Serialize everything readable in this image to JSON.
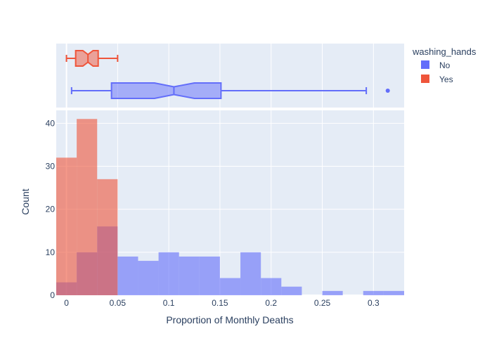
{
  "chart_data": {
    "type": "histogram",
    "xlabel": "Proportion of Monthly Deaths",
    "ylabel": "Count",
    "xlim": [
      -0.01,
      0.33
    ],
    "ylim": [
      0,
      43
    ],
    "y_ticks": [
      0,
      10,
      20,
      30,
      40
    ],
    "x_ticks": [
      0,
      0.05,
      0.1,
      0.15,
      0.2,
      0.25,
      0.3
    ],
    "x_tick_labels": [
      "0",
      "0.05",
      "0.1",
      "0.15",
      "0.2",
      "0.25",
      "0.3"
    ],
    "grid": true,
    "legend_title": "washing_hands",
    "legend_placement": "top-right",
    "series": [
      {
        "name": "No",
        "color": "#636efa",
        "bins": [
          {
            "x0": -0.01,
            "x1": 0.01,
            "count": 3
          },
          {
            "x0": 0.01,
            "x1": 0.03,
            "count": 10
          },
          {
            "x0": 0.03,
            "x1": 0.05,
            "count": 16
          },
          {
            "x0": 0.05,
            "x1": 0.07,
            "count": 9
          },
          {
            "x0": 0.07,
            "x1": 0.09,
            "count": 8
          },
          {
            "x0": 0.09,
            "x1": 0.11,
            "count": 10
          },
          {
            "x0": 0.11,
            "x1": 0.13,
            "count": 9
          },
          {
            "x0": 0.13,
            "x1": 0.15,
            "count": 9
          },
          {
            "x0": 0.15,
            "x1": 0.17,
            "count": 4
          },
          {
            "x0": 0.17,
            "x1": 0.19,
            "count": 10
          },
          {
            "x0": 0.19,
            "x1": 0.21,
            "count": 4
          },
          {
            "x0": 0.21,
            "x1": 0.23,
            "count": 2
          },
          {
            "x0": 0.25,
            "x1": 0.27,
            "count": 1
          },
          {
            "x0": 0.29,
            "x1": 0.31,
            "count": 1
          },
          {
            "x0": 0.31,
            "x1": 0.33,
            "count": 1
          }
        ],
        "box": {
          "min": 0.005,
          "q1": 0.044,
          "median": 0.105,
          "q3": 0.151,
          "max": 0.293,
          "notch_low": 0.086,
          "notch_high": 0.125,
          "outliers": [
            0.314
          ]
        }
      },
      {
        "name": "Yes",
        "color": "#ef553b",
        "bins": [
          {
            "x0": -0.01,
            "x1": 0.01,
            "count": 32
          },
          {
            "x0": 0.01,
            "x1": 0.03,
            "count": 41
          },
          {
            "x0": 0.03,
            "x1": 0.05,
            "count": 27
          }
        ],
        "box": {
          "min": 0.0,
          "q1": 0.009,
          "median": 0.021,
          "q3": 0.031,
          "max": 0.05,
          "notch_low": 0.016,
          "notch_high": 0.026,
          "outliers": []
        }
      }
    ]
  }
}
